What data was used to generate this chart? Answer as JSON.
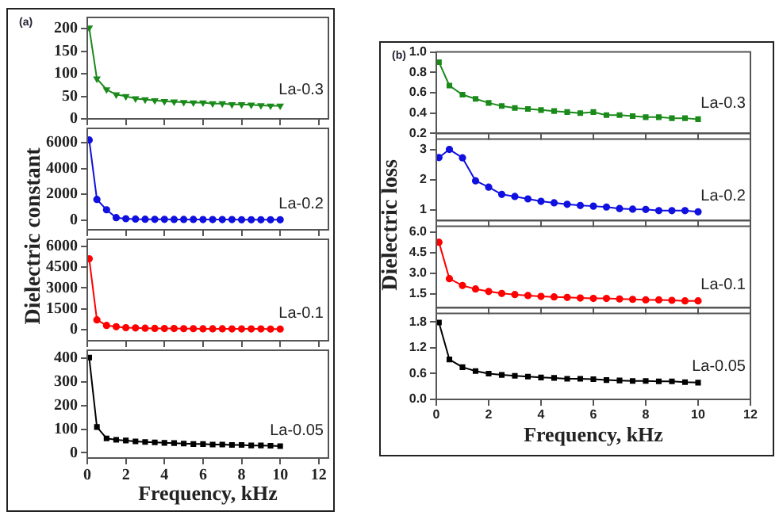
{
  "chart_data": [
    {
      "type": "line",
      "annotations": [
        "(a)"
      ],
      "ylabel": "Dielectric constant",
      "x": [
        0.1,
        0.5,
        1,
        1.5,
        2,
        2.5,
        3,
        3.5,
        4,
        4.5,
        5,
        5.5,
        6,
        6.5,
        7,
        7.5,
        8,
        8.5,
        9,
        9.5,
        10
      ],
      "series": [
        {
          "name": "La-0.3",
          "color": "#1a8a1a",
          "values": [
            202,
            89,
            65,
            54,
            50,
            45,
            43,
            41,
            39,
            38,
            37,
            36,
            36,
            34,
            34,
            32,
            32,
            31,
            30,
            29,
            29
          ]
        }
      ],
      "marker": "triangle",
      "xlim": [
        0,
        12.5
      ],
      "xticks": [
        0,
        2,
        4,
        6,
        8,
        10,
        12
      ],
      "ylim": [
        0,
        225
      ],
      "yticks": [
        0,
        50,
        100,
        150,
        200
      ],
      "tick_labels": "y",
      "grid": false,
      "legend": false
    },
    {
      "type": "line",
      "x": [
        0.1,
        0.5,
        1,
        1.5,
        2,
        2.5,
        3,
        3.5,
        4,
        4.5,
        5,
        5.5,
        6,
        6.5,
        7,
        7.5,
        8,
        8.5,
        9,
        9.5,
        10
      ],
      "series": [
        {
          "name": "La-0.2",
          "color": "#1010e0",
          "values": [
            6200,
            1600,
            800,
            190,
            110,
            80,
            70,
            60,
            60,
            50,
            50,
            50,
            40,
            40,
            40,
            40,
            30,
            30,
            30,
            30,
            30
          ]
        }
      ],
      "marker": "circle",
      "xlim": [
        0,
        12.5
      ],
      "xticks": [
        0,
        2,
        4,
        6,
        8,
        10,
        12
      ],
      "ylim": [
        -750,
        7100
      ],
      "yticks": [
        0,
        2000,
        4000,
        6000
      ],
      "tick_labels": "y",
      "grid": false,
      "legend": false
    },
    {
      "type": "line",
      "x": [
        0.1,
        0.5,
        1,
        1.5,
        2,
        2.5,
        3,
        3.5,
        4,
        4.5,
        5,
        5.5,
        6,
        6.5,
        7,
        7.5,
        8,
        8.5,
        9,
        9.5,
        10
      ],
      "series": [
        {
          "name": "La-0.1",
          "color": "#ff0000",
          "values": [
            5100,
            700,
            300,
            210,
            140,
            120,
            100,
            90,
            80,
            80,
            70,
            70,
            60,
            60,
            60,
            50,
            50,
            50,
            50,
            40,
            40
          ]
        }
      ],
      "marker": "circle",
      "xlim": [
        0,
        12.5
      ],
      "xticks": [
        0,
        2,
        4,
        6,
        8,
        10,
        12
      ],
      "ylim": [
        -800,
        6500
      ],
      "yticks": [
        0,
        1500,
        3000,
        4500,
        6000
      ],
      "tick_labels": "y",
      "grid": false,
      "legend": false
    },
    {
      "type": "line",
      "xlabel": "Frequency, kHz",
      "x": [
        0.1,
        0.5,
        1,
        1.5,
        2,
        2.5,
        3,
        3.5,
        4,
        4.5,
        5,
        5.5,
        6,
        6.5,
        7,
        7.5,
        8,
        8.5,
        9,
        9.5,
        10
      ],
      "series": [
        {
          "name": "La-0.05",
          "color": "#000000",
          "values": [
            402,
            109,
            61,
            55,
            52,
            48,
            46,
            44,
            42,
            41,
            39,
            37,
            37,
            35,
            35,
            33,
            33,
            31,
            31,
            30,
            28
          ]
        }
      ],
      "marker": "square",
      "xlim": [
        0,
        12.5
      ],
      "xticks": [
        0,
        2,
        4,
        6,
        8,
        10,
        12
      ],
      "ylim": [
        -22,
        433
      ],
      "yticks": [
        0,
        100,
        200,
        300,
        400
      ],
      "grid": false,
      "legend": false
    },
    {
      "type": "line",
      "annotations": [
        "(b)"
      ],
      "ylabel": "Dielectric loss",
      "x": [
        0.1,
        0.5,
        1,
        1.5,
        2,
        2.5,
        3,
        3.5,
        4,
        4.5,
        5,
        5.5,
        6,
        6.5,
        7,
        7.5,
        8,
        8.5,
        9,
        9.5,
        10
      ],
      "series": [
        {
          "name": "La-0.3",
          "color": "#1a8a1a",
          "values": [
            0.9,
            0.67,
            0.58,
            0.54,
            0.5,
            0.47,
            0.45,
            0.44,
            0.43,
            0.42,
            0.41,
            0.4,
            0.41,
            0.38,
            0.38,
            0.37,
            0.36,
            0.36,
            0.35,
            0.35,
            0.34
          ]
        }
      ],
      "marker": "square",
      "xlim": [
        0,
        12
      ],
      "xticks": [
        0,
        2,
        4,
        6,
        8,
        10,
        12
      ],
      "ylim": [
        0.2,
        1
      ],
      "yticks": [
        0.2,
        0.4,
        0.6,
        0.8,
        {
          "value": 1,
          "label": "1.0"
        }
      ],
      "tick_labels": "y",
      "grid": false,
      "legend": false
    },
    {
      "type": "line",
      "x": [
        0.1,
        0.5,
        1,
        1.5,
        2,
        2.5,
        3,
        3.5,
        4,
        4.5,
        5,
        5.5,
        6,
        6.5,
        7,
        7.5,
        8,
        8.5,
        9,
        9.5,
        10
      ],
      "series": [
        {
          "name": "La-0.2",
          "color": "#1010e0",
          "values": [
            2.74,
            3.01,
            2.73,
            1.97,
            1.76,
            1.52,
            1.45,
            1.37,
            1.29,
            1.24,
            1.19,
            1.15,
            1.13,
            1.1,
            1.05,
            1.03,
            1.02,
            0.98,
            0.98,
            0.98,
            0.94
          ]
        }
      ],
      "marker": "circle",
      "xlim": [
        0,
        12
      ],
      "xticks": [
        0,
        2,
        4,
        6,
        8,
        10,
        12
      ],
      "ylim": [
        0.65,
        3.35
      ],
      "yticks": [
        1,
        2,
        3
      ],
      "tick_labels": "y",
      "grid": false,
      "legend": false
    },
    {
      "type": "line",
      "x": [
        0.1,
        0.5,
        1,
        1.5,
        2,
        2.5,
        3,
        3.5,
        4,
        4.5,
        5,
        5.5,
        6,
        6.5,
        7,
        7.5,
        8,
        8.5,
        9,
        9.5,
        10
      ],
      "series": [
        {
          "name": "La-0.1",
          "color": "#ff0000",
          "values": [
            5.25,
            2.61,
            2.11,
            1.86,
            1.68,
            1.54,
            1.46,
            1.39,
            1.32,
            1.29,
            1.25,
            1.21,
            1.18,
            1.18,
            1.14,
            1.11,
            1.07,
            1.07,
            1.04,
            1,
            1
          ]
        }
      ],
      "marker": "circle",
      "xlim": [
        0,
        12
      ],
      "xticks": [
        0,
        2,
        4,
        6,
        8,
        10,
        12
      ],
      "ylim": [
        0.5,
        6.4
      ],
      "yticks": [
        1.5,
        {
          "value": 3,
          "label": "3.0"
        },
        4.5,
        {
          "value": 6,
          "label": "6.0"
        }
      ],
      "tick_labels": "y",
      "grid": false,
      "legend": false
    },
    {
      "type": "line",
      "xlabel": "Frequency, kHz",
      "x": [
        0.1,
        0.5,
        1,
        1.5,
        2,
        2.5,
        3,
        3.5,
        4,
        4.5,
        5,
        5.5,
        6,
        6.5,
        7,
        7.5,
        8,
        8.5,
        9,
        9.5,
        10
      ],
      "series": [
        {
          "name": "La-0.05",
          "color": "#000000",
          "values": [
            1.79,
            0.93,
            0.75,
            0.66,
            0.6,
            0.57,
            0.55,
            0.53,
            0.51,
            0.5,
            0.48,
            0.48,
            0.47,
            0.45,
            0.44,
            0.43,
            0.43,
            0.42,
            0.42,
            0.4,
            0.39
          ]
        }
      ],
      "marker": "square",
      "xlim": [
        0,
        12
      ],
      "xticks": [
        0,
        2,
        4,
        6,
        8,
        10,
        12
      ],
      "ylim": [
        0,
        2
      ],
      "yticks": [
        {
          "value": 0,
          "label": "0.0"
        },
        0.6,
        1.2,
        1.8
      ],
      "grid": false,
      "legend": false
    }
  ]
}
